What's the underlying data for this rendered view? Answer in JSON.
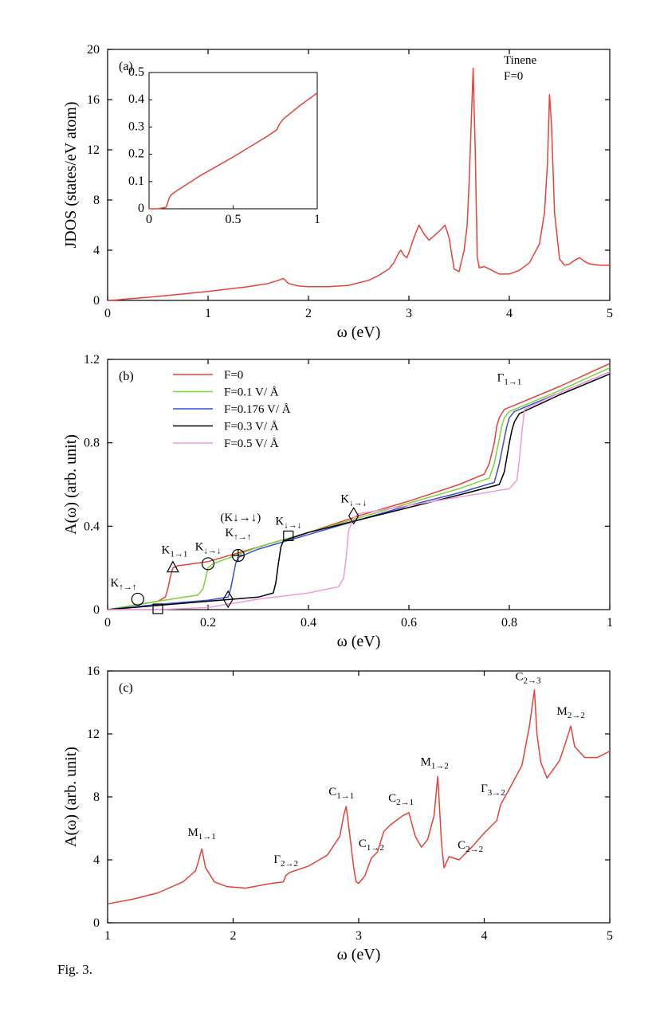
{
  "figure_caption": "Fig. 3.",
  "sub": {
    "up_up": "↑→↑",
    "down_down": "↓→↓",
    "one_one": "1→1",
    "one_two": "1→2",
    "two_one": "2→1",
    "two_two": "2→2",
    "two_three": "2→3",
    "three_two": "3→2"
  },
  "chart_data": [
    {
      "id": "a",
      "panel_label": "(a)",
      "type": "line",
      "xlabel": "ω (eV)",
      "ylabel": "JDOS (states/eV atom)",
      "xlim": [
        0,
        5
      ],
      "ylim": [
        0,
        20
      ],
      "xticks": [
        "0",
        "1",
        "2",
        "3",
        "4",
        "5"
      ],
      "yticks": [
        "0",
        "4",
        "8",
        "12",
        "16",
        "20"
      ],
      "annotation_lines": [
        "Tinene",
        "F=0"
      ],
      "series": [
        {
          "name": "F=0",
          "color": "#e8413a",
          "x": [
            0,
            0.1,
            0.2,
            0.4,
            0.6,
            0.8,
            1.0,
            1.2,
            1.4,
            1.6,
            1.7,
            1.75,
            1.8,
            1.9,
            2.0,
            2.2,
            2.4,
            2.5,
            2.6,
            2.7,
            2.8,
            2.85,
            2.9,
            2.92,
            2.95,
            2.98,
            3.0,
            3.05,
            3.1,
            3.15,
            3.2,
            3.3,
            3.36,
            3.4,
            3.45,
            3.5,
            3.55,
            3.58,
            3.6,
            3.62,
            3.64,
            3.66,
            3.68,
            3.7,
            3.75,
            3.8,
            3.9,
            4.0,
            4.1,
            4.2,
            4.3,
            4.35,
            4.38,
            4.4,
            4.42,
            4.45,
            4.5,
            4.55,
            4.6,
            4.65,
            4.7,
            4.75,
            4.8,
            4.9,
            5.0
          ],
          "y": [
            0,
            0.05,
            0.12,
            0.25,
            0.4,
            0.55,
            0.72,
            0.9,
            1.1,
            1.35,
            1.6,
            1.75,
            1.35,
            1.15,
            1.1,
            1.1,
            1.2,
            1.4,
            1.6,
            2.0,
            2.5,
            3.0,
            3.8,
            4.0,
            3.6,
            3.4,
            3.8,
            5.0,
            6.0,
            5.3,
            4.8,
            5.5,
            6.0,
            5.0,
            2.5,
            2.3,
            4.0,
            6.0,
            9.5,
            14.0,
            18.5,
            12.0,
            3.5,
            2.6,
            2.7,
            2.5,
            2.1,
            2.1,
            2.4,
            3.0,
            4.5,
            7.0,
            11.0,
            16.4,
            14.0,
            7.0,
            3.3,
            2.8,
            2.9,
            3.2,
            3.4,
            3.1,
            2.9,
            2.8,
            2.8
          ]
        }
      ],
      "inset": {
        "xlim": [
          0,
          1
        ],
        "ylim": [
          0,
          0.5
        ],
        "xticks": [
          "0",
          "0.5",
          "1"
        ],
        "yticks": [
          "0",
          "0.1",
          "0.2",
          "0.3",
          "0.4",
          "0.5"
        ],
        "x": [
          0,
          0.05,
          0.1,
          0.11,
          0.12,
          0.13,
          0.15,
          0.3,
          0.5,
          0.7,
          0.76,
          0.77,
          0.78,
          0.8,
          0.9,
          1.0
        ],
        "y": [
          0,
          0.0,
          0.005,
          0.02,
          0.04,
          0.05,
          0.06,
          0.12,
          0.19,
          0.265,
          0.29,
          0.305,
          0.315,
          0.33,
          0.38,
          0.425
        ]
      }
    },
    {
      "id": "b",
      "panel_label": "(b)",
      "type": "line",
      "xlabel": "ω (eV)",
      "ylabel": "A(ω) (arb. unit)",
      "xlim": [
        0,
        1
      ],
      "ylim": [
        0,
        1.2
      ],
      "xticks": [
        "0",
        "0.2",
        "0.4",
        "0.6",
        "0.8",
        "1"
      ],
      "yticks": [
        "0",
        "0.4",
        "0.8",
        "1.2"
      ],
      "legend_position": "top-left",
      "series": [
        {
          "name": "F=0",
          "color": "#e8413a",
          "x": [
            0,
            0.1,
            0.115,
            0.12,
            0.125,
            0.13,
            0.14,
            0.2,
            0.3,
            0.4,
            0.5,
            0.6,
            0.7,
            0.75,
            0.76,
            0.77,
            0.775,
            0.78,
            0.785,
            0.79,
            0.8,
            0.9,
            1.0
          ],
          "y": [
            0,
            0.04,
            0.06,
            0.1,
            0.16,
            0.2,
            0.21,
            0.23,
            0.3,
            0.37,
            0.45,
            0.52,
            0.6,
            0.65,
            0.7,
            0.8,
            0.88,
            0.92,
            0.94,
            0.96,
            0.97,
            1.07,
            1.18
          ]
        },
        {
          "name": "F=0.1 V/ Å",
          "color": "#7ed23a",
          "x": [
            0,
            0.1,
            0.18,
            0.19,
            0.195,
            0.2,
            0.21,
            0.3,
            0.4,
            0.5,
            0.6,
            0.7,
            0.76,
            0.77,
            0.78,
            0.785,
            0.79,
            0.8,
            0.9,
            1.0
          ],
          "y": [
            0,
            0.04,
            0.07,
            0.1,
            0.15,
            0.2,
            0.22,
            0.3,
            0.37,
            0.44,
            0.51,
            0.58,
            0.63,
            0.7,
            0.82,
            0.88,
            0.92,
            0.95,
            1.05,
            1.16
          ]
        },
        {
          "name": "F=0.176 V/ Å",
          "color": "#3a4fd6",
          "x": [
            0,
            0.1,
            0.2,
            0.24,
            0.245,
            0.25,
            0.255,
            0.26,
            0.3,
            0.4,
            0.5,
            0.6,
            0.7,
            0.77,
            0.78,
            0.79,
            0.795,
            0.8,
            0.81,
            0.9,
            1.0
          ],
          "y": [
            0,
            0.025,
            0.045,
            0.06,
            0.1,
            0.16,
            0.22,
            0.25,
            0.29,
            0.36,
            0.43,
            0.5,
            0.56,
            0.61,
            0.7,
            0.82,
            0.88,
            0.92,
            0.95,
            1.04,
            1.14
          ]
        },
        {
          "name": "F=0.3 V/ Å",
          "color": "#000000",
          "x": [
            0,
            0.1,
            0.2,
            0.3,
            0.33,
            0.335,
            0.34,
            0.345,
            0.35,
            0.4,
            0.5,
            0.6,
            0.7,
            0.78,
            0.79,
            0.8,
            0.805,
            0.81,
            0.82,
            0.9,
            1.0
          ],
          "y": [
            0,
            0.02,
            0.04,
            0.06,
            0.08,
            0.13,
            0.22,
            0.3,
            0.33,
            0.37,
            0.43,
            0.49,
            0.55,
            0.6,
            0.66,
            0.8,
            0.86,
            0.9,
            0.94,
            1.03,
            1.13
          ]
        },
        {
          "name": "F=0.5 V/ Å",
          "color": "#f29ad8",
          "x": [
            0,
            0.1,
            0.2,
            0.3,
            0.4,
            0.46,
            0.47,
            0.475,
            0.48,
            0.49,
            0.5,
            0.6,
            0.7,
            0.8,
            0.815,
            0.82,
            0.825,
            0.83,
            0.9,
            1.0
          ],
          "y": [
            0,
            0.0,
            0.01,
            0.05,
            0.08,
            0.11,
            0.15,
            0.25,
            0.38,
            0.44,
            0.46,
            0.5,
            0.54,
            0.58,
            0.62,
            0.72,
            0.85,
            0.96,
            1.04,
            1.14
          ]
        }
      ],
      "annotations": [
        {
          "base": "K",
          "sub_key": "up_up",
          "x": 0.06,
          "y": 0.05,
          "marker": "circle"
        },
        {
          "base": "",
          "sub_key": "",
          "x": 0.1,
          "y": 0.0,
          "marker": "square"
        },
        {
          "base": "K",
          "sub_key": "one_one",
          "x": 0.13,
          "y": 0.2,
          "marker": "triangle"
        },
        {
          "base": "K",
          "sub_key": "down_down",
          "x": 0.2,
          "y": 0.22,
          "marker": "circle"
        },
        {
          "base": "",
          "sub_key": "",
          "x": 0.24,
          "y": 0.05,
          "marker": "diamond"
        },
        {
          "base": "K",
          "sub_key": "up_up",
          "x": 0.26,
          "y": 0.26,
          "marker": "circle-plus",
          "extra": "(K↓→↓)"
        },
        {
          "base": "K",
          "sub_key": "down_down",
          "x": 0.36,
          "y": 0.35,
          "marker": "square"
        },
        {
          "base": "K",
          "sub_key": "down_down",
          "x": 0.49,
          "y": 0.45,
          "marker": "diamond"
        },
        {
          "base": "Γ",
          "sub_key": "one_one",
          "x": 0.8,
          "y": 1.0,
          "marker": "none"
        }
      ]
    },
    {
      "id": "c",
      "panel_label": "(c)",
      "type": "line",
      "xlabel": "ω (eV)",
      "ylabel": "A(ω) (arb. unit)",
      "xlim": [
        1,
        5
      ],
      "ylim": [
        0,
        16
      ],
      "xticks": [
        "1",
        "2",
        "3",
        "4",
        "5"
      ],
      "yticks": [
        "0",
        "4",
        "8",
        "12",
        "16"
      ],
      "series": [
        {
          "name": "F=0",
          "color": "#e8413a",
          "x": [
            1.0,
            1.2,
            1.4,
            1.6,
            1.7,
            1.72,
            1.75,
            1.78,
            1.85,
            1.95,
            2.1,
            2.3,
            2.4,
            2.42,
            2.45,
            2.6,
            2.75,
            2.85,
            2.88,
            2.9,
            2.93,
            2.96,
            2.98,
            3.0,
            3.05,
            3.1,
            3.15,
            3.2,
            3.25,
            3.35,
            3.4,
            3.45,
            3.5,
            3.55,
            3.6,
            3.63,
            3.66,
            3.68,
            3.72,
            3.8,
            3.9,
            4.0,
            4.1,
            4.13,
            4.2,
            4.3,
            4.36,
            4.4,
            4.42,
            4.45,
            4.5,
            4.6,
            4.65,
            4.69,
            4.72,
            4.8,
            4.9,
            5.0
          ],
          "y": [
            1.2,
            1.5,
            1.9,
            2.6,
            3.3,
            3.8,
            4.7,
            3.5,
            2.6,
            2.3,
            2.2,
            2.5,
            2.6,
            3.0,
            3.2,
            3.6,
            4.3,
            5.5,
            6.8,
            7.4,
            5.5,
            3.5,
            2.6,
            2.5,
            3.0,
            4.1,
            4.5,
            5.8,
            6.2,
            6.8,
            7.0,
            5.5,
            4.8,
            5.3,
            6.8,
            9.3,
            5.0,
            3.5,
            4.2,
            4.0,
            4.8,
            5.7,
            6.5,
            7.5,
            8.5,
            10.0,
            12.5,
            14.8,
            12.0,
            10.2,
            9.2,
            10.3,
            11.5,
            12.5,
            11.2,
            10.5,
            10.5,
            10.9
          ]
        }
      ],
      "annotations": [
        {
          "base": "M",
          "sub_key": "one_one",
          "x": 1.75,
          "y": 4.7
        },
        {
          "base": "Γ",
          "sub_key": "two_two",
          "x": 2.42,
          "y": 3.1
        },
        {
          "base": "C",
          "sub_key": "one_one",
          "x": 2.9,
          "y": 7.4
        },
        {
          "base": "C",
          "sub_key": "one_two",
          "x": 3.05,
          "y": 4.1
        },
        {
          "base": "C",
          "sub_key": "two_one",
          "x": 3.35,
          "y": 7.0
        },
        {
          "base": "M",
          "sub_key": "one_two",
          "x": 3.63,
          "y": 9.3
        },
        {
          "base": "C",
          "sub_key": "two_two",
          "x": 3.75,
          "y": 4.2
        },
        {
          "base": "Γ",
          "sub_key": "three_two",
          "x": 4.12,
          "y": 7.5
        },
        {
          "base": "C",
          "sub_key": "two_three",
          "x": 4.4,
          "y": 14.8
        },
        {
          "base": "M",
          "sub_key": "two_two",
          "x": 4.69,
          "y": 12.5
        }
      ]
    }
  ]
}
